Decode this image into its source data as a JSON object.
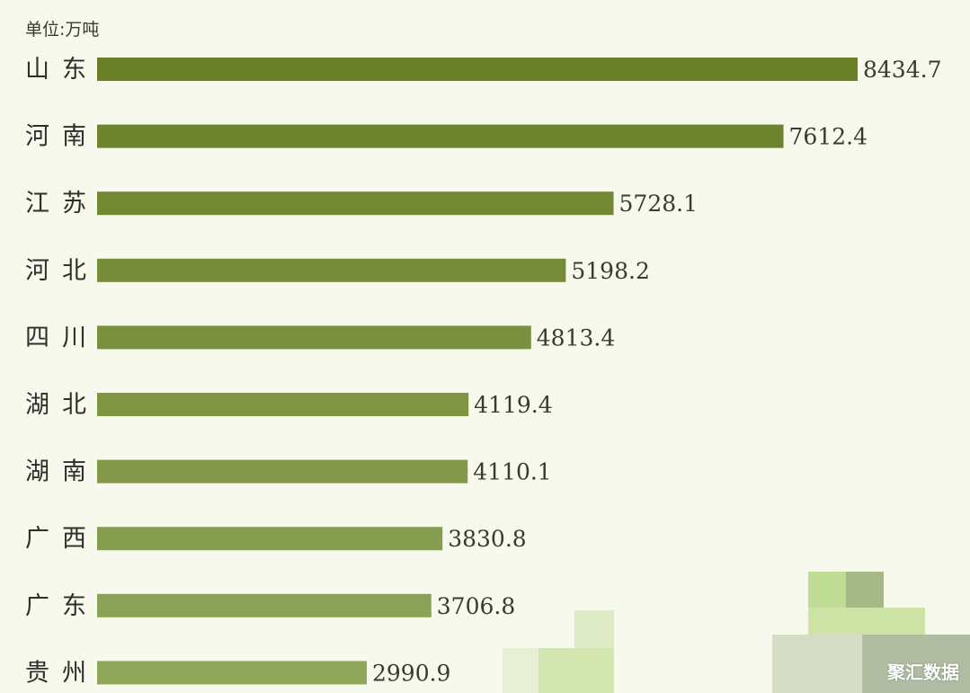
{
  "unit_label": "单位:万吨",
  "watermark": "聚汇数据",
  "colors": {
    "background": "#f6f9ec",
    "bar_dark": "#6b7f28",
    "bar_light": "#8fa65a"
  },
  "chart_data": {
    "type": "bar",
    "orientation": "horizontal",
    "unit": "万吨",
    "categories": [
      "山东",
      "河南",
      "江苏",
      "河北",
      "四川",
      "湖北",
      "湖南",
      "广西",
      "广东",
      "贵州"
    ],
    "values": [
      8434.7,
      7612.4,
      5728.1,
      5198.2,
      4813.4,
      4119.4,
      4110.1,
      3830.8,
      3706.8,
      2990.9
    ],
    "value_labels": [
      "8434.7",
      "7612.4",
      "5728.1",
      "5198.2",
      "4813.4",
      "4119.4",
      "4110.1",
      "3830.8",
      "3706.8",
      "2990.9"
    ],
    "xlim": [
      0,
      8434.7
    ],
    "grid": false,
    "legend": "none"
  }
}
